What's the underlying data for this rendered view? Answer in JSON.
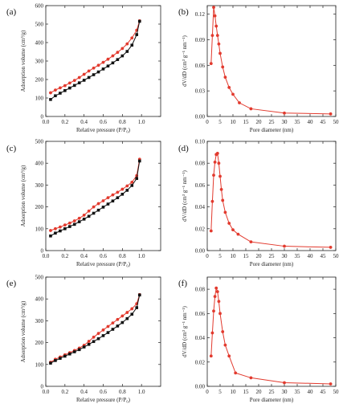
{
  "chart_data": [
    {
      "panel": "(a)",
      "type": "scatter",
      "xlabel": "Relative pressure (P/P₀)",
      "ylabel": "Adsorption volume (cm³/g)",
      "xlim": [
        0.0,
        1.2
      ],
      "ylim": [
        0,
        600
      ],
      "xticks": [
        0.0,
        0.2,
        0.4,
        0.6,
        0.8,
        1.0
      ],
      "xtick_labels": [
        "0.0",
        "0.2",
        "0.4",
        "0.6",
        "0.8",
        "1.0"
      ],
      "yticks": [
        0,
        100,
        200,
        300,
        400,
        500,
        600
      ],
      "ytick_labels": [
        "0",
        "100",
        "200",
        "300",
        "400",
        "500",
        "600"
      ],
      "series": [
        {
          "color": "#e23a2e",
          "marker": "circle",
          "x": [
            0.05,
            0.1,
            0.15,
            0.2,
            0.25,
            0.3,
            0.35,
            0.4,
            0.45,
            0.5,
            0.55,
            0.6,
            0.65,
            0.7,
            0.75,
            0.8,
            0.85,
            0.9,
            0.95,
            0.98
          ],
          "y": [
            128,
            143,
            155,
            167,
            181,
            195,
            211,
            228,
            246,
            262,
            277,
            293,
            310,
            328,
            347,
            368,
            393,
            425,
            467,
            518
          ]
        },
        {
          "color": "#111111",
          "marker": "square",
          "x": [
            0.05,
            0.1,
            0.15,
            0.2,
            0.25,
            0.3,
            0.35,
            0.4,
            0.45,
            0.5,
            0.55,
            0.6,
            0.65,
            0.7,
            0.75,
            0.8,
            0.85,
            0.9,
            0.95,
            0.98
          ],
          "y": [
            92,
            112,
            126,
            140,
            154,
            168,
            182,
            196,
            211,
            226,
            241,
            257,
            273,
            290,
            308,
            328,
            352,
            386,
            443,
            515
          ]
        }
      ]
    },
    {
      "panel": "(b)",
      "type": "line",
      "xlabel": "Pore diameter (nm)",
      "ylabel": "dV/dD (cm³ g⁻¹ nm⁻¹)",
      "xlim": [
        0,
        50
      ],
      "ylim": [
        0,
        0.13
      ],
      "xticks": [
        0,
        5,
        10,
        15,
        20,
        25,
        30,
        35,
        40,
        45,
        50
      ],
      "xtick_labels": [
        "0",
        "5",
        "10",
        "15",
        "20",
        "25",
        "30",
        "35",
        "40",
        "45",
        "50"
      ],
      "yticks": [
        0.0,
        0.03,
        0.06,
        0.09,
        0.12
      ],
      "ytick_labels": [
        "0.00",
        "0.03",
        "0.06",
        "0.09",
        "0.12"
      ],
      "series": [
        {
          "color": "#e23a2e",
          "marker": "circle",
          "x": [
            1.5,
            2.0,
            2.5,
            3.0,
            3.5,
            4.0,
            4.5,
            5.0,
            6.0,
            7.0,
            8.5,
            10.0,
            12.5,
            17.0,
            30.0,
            48.0
          ],
          "y": [
            0.062,
            0.095,
            0.128,
            0.118,
            0.106,
            0.095,
            0.085,
            0.074,
            0.058,
            0.046,
            0.034,
            0.026,
            0.016,
            0.009,
            0.004,
            0.003
          ]
        }
      ]
    },
    {
      "panel": "(c)",
      "type": "scatter",
      "xlabel": "Relative pressure (P/P₀)",
      "ylabel": "Adsorption volume (cm³/g)",
      "xlim": [
        0.0,
        1.2
      ],
      "ylim": [
        0,
        500
      ],
      "xticks": [
        0.0,
        0.2,
        0.4,
        0.6,
        0.8,
        1.0
      ],
      "xtick_labels": [
        "0.0",
        "0.2",
        "0.4",
        "0.6",
        "0.8",
        "1.0"
      ],
      "yticks": [
        0,
        100,
        200,
        300,
        400,
        500
      ],
      "ytick_labels": [
        "0",
        "100",
        "200",
        "300",
        "400",
        "500"
      ],
      "series": [
        {
          "color": "#e23a2e",
          "marker": "circle",
          "x": [
            0.05,
            0.1,
            0.15,
            0.2,
            0.25,
            0.3,
            0.35,
            0.4,
            0.45,
            0.5,
            0.55,
            0.6,
            0.65,
            0.7,
            0.75,
            0.8,
            0.85,
            0.9,
            0.95,
            0.98
          ],
          "y": [
            92,
            100,
            108,
            117,
            126,
            136,
            148,
            162,
            181,
            200,
            215,
            228,
            242,
            255,
            267,
            281,
            296,
            313,
            343,
            418
          ]
        },
        {
          "color": "#111111",
          "marker": "square",
          "x": [
            0.05,
            0.1,
            0.15,
            0.2,
            0.25,
            0.3,
            0.35,
            0.4,
            0.45,
            0.5,
            0.55,
            0.6,
            0.65,
            0.7,
            0.75,
            0.8,
            0.85,
            0.9,
            0.95,
            0.98
          ],
          "y": [
            67,
            80,
            90,
            100,
            110,
            120,
            132,
            144,
            157,
            171,
            185,
            199,
            213,
            227,
            242,
            258,
            276,
            298,
            330,
            410
          ]
        }
      ]
    },
    {
      "panel": "(d)",
      "type": "line",
      "xlabel": "Pore diameter (nm)",
      "ylabel": "dV/dD (cm³ g⁻¹ nm⁻¹)",
      "xlim": [
        0,
        50
      ],
      "ylim": [
        0,
        0.1
      ],
      "xticks": [
        0,
        5,
        10,
        15,
        20,
        25,
        30,
        35,
        40,
        45,
        50
      ],
      "xtick_labels": [
        "0",
        "5",
        "10",
        "15",
        "20",
        "25",
        "30",
        "35",
        "40",
        "45",
        "50"
      ],
      "yticks": [
        0.0,
        0.02,
        0.04,
        0.06,
        0.08,
        0.1
      ],
      "ytick_labels": [
        "0.00",
        "0.02",
        "0.04",
        "0.06",
        "0.08",
        "0.10"
      ],
      "series": [
        {
          "color": "#e23a2e",
          "marker": "circle",
          "x": [
            1.5,
            2.0,
            2.5,
            3.0,
            3.5,
            4.0,
            4.5,
            5.0,
            5.5,
            6.0,
            7.0,
            8.5,
            10.0,
            12.0,
            17.0,
            30.0,
            48.0
          ],
          "y": [
            0.018,
            0.045,
            0.069,
            0.081,
            0.088,
            0.089,
            0.08,
            0.068,
            0.056,
            0.046,
            0.035,
            0.025,
            0.019,
            0.015,
            0.008,
            0.004,
            0.003
          ]
        }
      ]
    },
    {
      "panel": "(e)",
      "type": "scatter",
      "xlabel": "Relative pressure (P/P₀)",
      "ylabel": "Adsorption volume (cm³/g)",
      "xlim": [
        0.0,
        1.2
      ],
      "ylim": [
        0,
        500
      ],
      "xticks": [
        0.0,
        0.2,
        0.4,
        0.6,
        0.8,
        1.0
      ],
      "xtick_labels": [
        "0.0",
        "0.2",
        "0.4",
        "0.6",
        "0.8",
        "1.0"
      ],
      "yticks": [
        0,
        100,
        200,
        300,
        400,
        500
      ],
      "ytick_labels": [
        "0",
        "100",
        "200",
        "300",
        "400",
        "500"
      ],
      "series": [
        {
          "color": "#e23a2e",
          "marker": "circle",
          "x": [
            0.05,
            0.1,
            0.15,
            0.2,
            0.25,
            0.3,
            0.35,
            0.4,
            0.45,
            0.5,
            0.55,
            0.6,
            0.65,
            0.7,
            0.75,
            0.8,
            0.85,
            0.9,
            0.95,
            0.98
          ],
          "y": [
            110,
            124,
            134,
            144,
            154,
            164,
            175,
            188,
            206,
            225,
            242,
            258,
            274,
            290,
            306,
            322,
            338,
            355,
            378,
            420
          ]
        },
        {
          "color": "#111111",
          "marker": "square",
          "x": [
            0.05,
            0.1,
            0.15,
            0.2,
            0.25,
            0.3,
            0.35,
            0.4,
            0.45,
            0.5,
            0.55,
            0.6,
            0.65,
            0.7,
            0.75,
            0.8,
            0.85,
            0.9,
            0.95,
            0.98
          ],
          "y": [
            106,
            118,
            128,
            138,
            148,
            158,
            168,
            180,
            192,
            205,
            218,
            232,
            246,
            261,
            276,
            292,
            310,
            330,
            360,
            418
          ]
        }
      ]
    },
    {
      "panel": "(f)",
      "type": "line",
      "xlabel": "Pore diameter (nm)",
      "ylabel": "dV/dD (cm³ g⁻¹ nm⁻¹)",
      "xlim": [
        0,
        50
      ],
      "ylim": [
        0,
        0.09
      ],
      "xticks": [
        0,
        5,
        10,
        15,
        20,
        25,
        30,
        35,
        40,
        45,
        50
      ],
      "xtick_labels": [
        "0",
        "5",
        "10",
        "15",
        "20",
        "25",
        "30",
        "35",
        "40",
        "45",
        "50"
      ],
      "yticks": [
        0.0,
        0.02,
        0.04,
        0.06,
        0.08
      ],
      "ytick_labels": [
        "0.00",
        "0.02",
        "0.04",
        "0.06",
        "0.08"
      ],
      "series": [
        {
          "color": "#e23a2e",
          "marker": "circle",
          "x": [
            1.5,
            2.0,
            2.5,
            3.0,
            3.5,
            4.0,
            4.5,
            5.0,
            6.0,
            7.0,
            8.5,
            11.0,
            17.0,
            30.0,
            48.0
          ],
          "y": [
            0.025,
            0.044,
            0.062,
            0.074,
            0.081,
            0.078,
            0.07,
            0.06,
            0.045,
            0.034,
            0.025,
            0.011,
            0.007,
            0.003,
            0.002
          ]
        }
      ]
    }
  ]
}
